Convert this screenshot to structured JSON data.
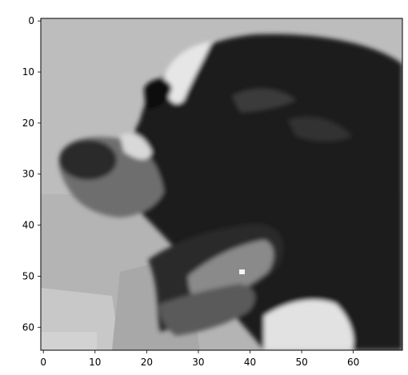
{
  "chart_data": {
    "type": "heatmap",
    "colormap": "gray",
    "grid": false,
    "xlim": [
      -0.5,
      69.5
    ],
    "ylim": [
      64.5,
      -0.5
    ],
    "x_ticks": [
      0,
      10,
      20,
      30,
      40,
      50,
      60
    ],
    "y_ticks": [
      0,
      10,
      20,
      30,
      40,
      50,
      60
    ],
    "x_tick_labels": [
      "0",
      "10",
      "20",
      "30",
      "40",
      "50",
      "60"
    ],
    "y_tick_labels": [
      "0",
      "10",
      "20",
      "30",
      "40",
      "50",
      "60"
    ],
    "image_shape": [
      65,
      70
    ],
    "image_content": "grayscale photo of a dog's head in profile, facing left, mouth open"
  }
}
